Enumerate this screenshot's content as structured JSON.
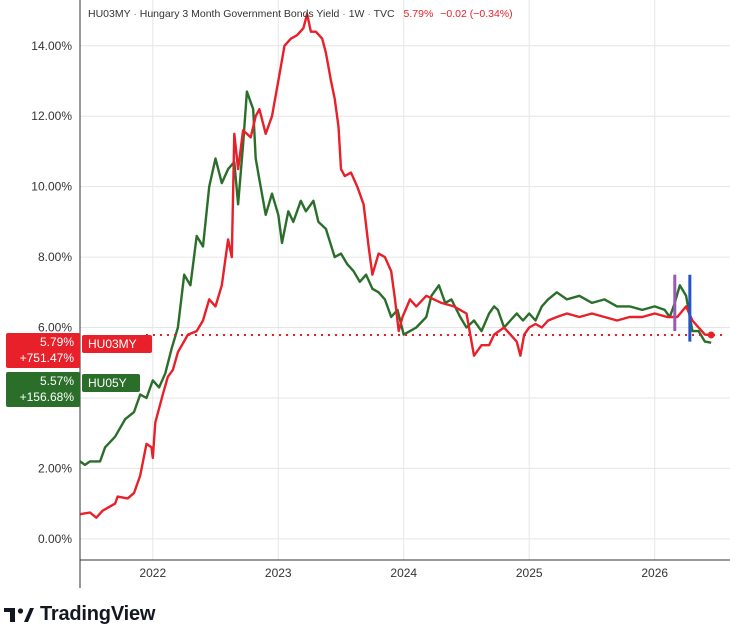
{
  "header": {
    "symbol": "HU03MY",
    "title": "Hungary 3 Month Government Bonds Yield",
    "interval": "1W",
    "source": "TVC",
    "last": "5.79%",
    "change": "−0.02 (−0.34%)"
  },
  "badges": {
    "hu03my_value": "5.79%",
    "hu03my_change": "+751.47%",
    "hu03my_name": "HU03MY",
    "hu05y_value": "5.57%",
    "hu05y_change": "+156.68%",
    "hu05y_name": "HU05Y"
  },
  "colors": {
    "hu03my": "#e8202a",
    "hu05y": "#2a6e2a",
    "grid": "#e6e6e6",
    "marker_purple": "#9b59b6",
    "marker_blue": "#2255cc"
  },
  "branding": {
    "name": "TradingView"
  },
  "chart_data": {
    "type": "line",
    "title": "HU03MY · Hungary 3 Month Government Bonds Yield · 1W · TVC",
    "xlim": [
      2021.42,
      2026.6
    ],
    "ylim": [
      -0.6,
      15.3
    ],
    "x_ticks": [
      2022,
      2023,
      2024,
      2025,
      2026
    ],
    "x_tick_labels": [
      "2022",
      "2023",
      "2024",
      "2025",
      "2026"
    ],
    "y_ticks": [
      0,
      2,
      4,
      6,
      8,
      10,
      12,
      14
    ],
    "y_tick_labels": [
      "0.00%",
      "2.00%",
      "4.00%",
      "6.00%",
      "8.00%",
      "10.00%",
      "12.00%",
      "14.00%"
    ],
    "grid": true,
    "legend": "left badges",
    "last_value_line": 5.79,
    "series": [
      {
        "name": "HU03MY",
        "color": "#e8202a",
        "points": [
          [
            2021.42,
            0.7
          ],
          [
            2021.5,
            0.75
          ],
          [
            2021.55,
            0.6
          ],
          [
            2021.6,
            0.8
          ],
          [
            2021.7,
            1.0
          ],
          [
            2021.72,
            1.2
          ],
          [
            2021.8,
            1.15
          ],
          [
            2021.85,
            1.3
          ],
          [
            2021.9,
            1.8
          ],
          [
            2021.95,
            2.7
          ],
          [
            2021.99,
            2.6
          ],
          [
            2022.0,
            2.3
          ],
          [
            2022.02,
            3.3
          ],
          [
            2022.08,
            4.1
          ],
          [
            2022.12,
            4.6
          ],
          [
            2022.16,
            4.8
          ],
          [
            2022.2,
            5.3
          ],
          [
            2022.28,
            5.8
          ],
          [
            2022.35,
            5.9
          ],
          [
            2022.4,
            6.2
          ],
          [
            2022.45,
            6.8
          ],
          [
            2022.5,
            6.6
          ],
          [
            2022.55,
            7.2
          ],
          [
            2022.6,
            8.5
          ],
          [
            2022.63,
            8.0
          ],
          [
            2022.65,
            11.5
          ],
          [
            2022.68,
            10.5
          ],
          [
            2022.72,
            11.6
          ],
          [
            2022.78,
            11.4
          ],
          [
            2022.82,
            12.0
          ],
          [
            2022.85,
            12.2
          ],
          [
            2022.9,
            11.5
          ],
          [
            2022.95,
            12.0
          ],
          [
            2023.0,
            13.0
          ],
          [
            2023.05,
            14.0
          ],
          [
            2023.1,
            14.2
          ],
          [
            2023.15,
            14.3
          ],
          [
            2023.2,
            14.5
          ],
          [
            2023.23,
            14.9
          ],
          [
            2023.26,
            14.4
          ],
          [
            2023.3,
            14.4
          ],
          [
            2023.35,
            14.2
          ],
          [
            2023.38,
            13.8
          ],
          [
            2023.42,
            13.0
          ],
          [
            2023.45,
            12.5
          ],
          [
            2023.48,
            11.7
          ],
          [
            2023.5,
            10.5
          ],
          [
            2023.53,
            10.3
          ],
          [
            2023.58,
            10.4
          ],
          [
            2023.63,
            10.0
          ],
          [
            2023.68,
            9.5
          ],
          [
            2023.72,
            8.3
          ],
          [
            2023.75,
            7.5
          ],
          [
            2023.8,
            8.1
          ],
          [
            2023.85,
            8.0
          ],
          [
            2023.9,
            7.6
          ],
          [
            2023.93,
            6.8
          ],
          [
            2023.96,
            5.9
          ],
          [
            2023.99,
            6.3
          ],
          [
            2024.05,
            6.8
          ],
          [
            2024.1,
            6.6
          ],
          [
            2024.18,
            6.9
          ],
          [
            2024.3,
            6.7
          ],
          [
            2024.4,
            6.6
          ],
          [
            2024.5,
            6.4
          ],
          [
            2024.56,
            5.2
          ],
          [
            2024.62,
            5.5
          ],
          [
            2024.68,
            5.5
          ],
          [
            2024.72,
            5.8
          ],
          [
            2024.8,
            6.0
          ],
          [
            2024.85,
            5.8
          ],
          [
            2024.9,
            5.6
          ],
          [
            2024.93,
            5.2
          ],
          [
            2024.96,
            5.8
          ],
          [
            2025.0,
            6.0
          ],
          [
            2025.05,
            6.1
          ],
          [
            2025.1,
            6.0
          ],
          [
            2025.15,
            6.2
          ],
          [
            2025.22,
            6.3
          ],
          [
            2025.3,
            6.4
          ],
          [
            2025.4,
            6.3
          ],
          [
            2025.5,
            6.4
          ],
          [
            2025.6,
            6.3
          ],
          [
            2025.7,
            6.2
          ],
          [
            2025.8,
            6.3
          ],
          [
            2025.9,
            6.3
          ],
          [
            2026.0,
            6.4
          ],
          [
            2026.1,
            6.3
          ],
          [
            2026.18,
            6.3
          ],
          [
            2026.25,
            6.6
          ],
          [
            2026.3,
            6.2
          ],
          [
            2026.35,
            6.0
          ],
          [
            2026.4,
            5.8
          ],
          [
            2026.45,
            5.79
          ]
        ]
      },
      {
        "name": "HU05Y",
        "color": "#2a6e2a",
        "points": [
          [
            2021.42,
            2.2
          ],
          [
            2021.46,
            2.1
          ],
          [
            2021.5,
            2.2
          ],
          [
            2021.58,
            2.2
          ],
          [
            2021.62,
            2.6
          ],
          [
            2021.7,
            2.9
          ],
          [
            2021.78,
            3.4
          ],
          [
            2021.85,
            3.6
          ],
          [
            2021.9,
            4.1
          ],
          [
            2021.95,
            4.0
          ],
          [
            2022.0,
            4.5
          ],
          [
            2022.05,
            4.3
          ],
          [
            2022.1,
            4.7
          ],
          [
            2022.15,
            5.4
          ],
          [
            2022.2,
            6.0
          ],
          [
            2022.25,
            7.5
          ],
          [
            2022.3,
            7.2
          ],
          [
            2022.35,
            8.6
          ],
          [
            2022.4,
            8.3
          ],
          [
            2022.45,
            10.0
          ],
          [
            2022.5,
            10.8
          ],
          [
            2022.55,
            10.1
          ],
          [
            2022.6,
            10.5
          ],
          [
            2022.65,
            10.7
          ],
          [
            2022.68,
            9.5
          ],
          [
            2022.72,
            11.2
          ],
          [
            2022.75,
            12.7
          ],
          [
            2022.8,
            12.2
          ],
          [
            2022.82,
            10.8
          ],
          [
            2022.85,
            10.2
          ],
          [
            2022.9,
            9.2
          ],
          [
            2022.95,
            9.8
          ],
          [
            2023.0,
            9.2
          ],
          [
            2023.03,
            8.4
          ],
          [
            2023.08,
            9.3
          ],
          [
            2023.12,
            9.0
          ],
          [
            2023.18,
            9.6
          ],
          [
            2023.22,
            9.3
          ],
          [
            2023.28,
            9.6
          ],
          [
            2023.32,
            9.0
          ],
          [
            2023.38,
            8.8
          ],
          [
            2023.45,
            8.0
          ],
          [
            2023.5,
            8.1
          ],
          [
            2023.55,
            7.8
          ],
          [
            2023.6,
            7.6
          ],
          [
            2023.65,
            7.3
          ],
          [
            2023.7,
            7.5
          ],
          [
            2023.75,
            7.1
          ],
          [
            2023.8,
            7.0
          ],
          [
            2023.85,
            6.8
          ],
          [
            2023.9,
            6.3
          ],
          [
            2023.95,
            6.5
          ],
          [
            2024.0,
            5.8
          ],
          [
            2024.05,
            5.9
          ],
          [
            2024.1,
            6.0
          ],
          [
            2024.18,
            6.3
          ],
          [
            2024.22,
            6.9
          ],
          [
            2024.28,
            7.2
          ],
          [
            2024.33,
            6.7
          ],
          [
            2024.38,
            6.8
          ],
          [
            2024.45,
            6.3
          ],
          [
            2024.5,
            6.0
          ],
          [
            2024.56,
            6.2
          ],
          [
            2024.62,
            5.9
          ],
          [
            2024.68,
            6.4
          ],
          [
            2024.72,
            6.6
          ],
          [
            2024.75,
            6.5
          ],
          [
            2024.8,
            6.0
          ],
          [
            2024.85,
            6.2
          ],
          [
            2024.9,
            6.4
          ],
          [
            2024.95,
            6.2
          ],
          [
            2025.0,
            6.4
          ],
          [
            2025.05,
            6.2
          ],
          [
            2025.1,
            6.6
          ],
          [
            2025.15,
            6.8
          ],
          [
            2025.22,
            7.0
          ],
          [
            2025.3,
            6.8
          ],
          [
            2025.4,
            6.9
          ],
          [
            2025.5,
            6.7
          ],
          [
            2025.6,
            6.8
          ],
          [
            2025.7,
            6.6
          ],
          [
            2025.8,
            6.6
          ],
          [
            2025.9,
            6.5
          ],
          [
            2026.0,
            6.6
          ],
          [
            2026.08,
            6.5
          ],
          [
            2026.12,
            6.3
          ],
          [
            2026.16,
            6.7
          ],
          [
            2026.2,
            7.2
          ],
          [
            2026.25,
            6.9
          ],
          [
            2026.3,
            5.9
          ],
          [
            2026.35,
            5.9
          ],
          [
            2026.4,
            5.6
          ],
          [
            2026.45,
            5.57
          ]
        ]
      }
    ],
    "markers": [
      {
        "x": 2026.16,
        "ymin": 5.9,
        "ymax": 7.5,
        "color": "#9b59b6"
      },
      {
        "x": 2026.28,
        "ymin": 5.6,
        "ymax": 7.5,
        "color": "#2255cc"
      }
    ]
  }
}
